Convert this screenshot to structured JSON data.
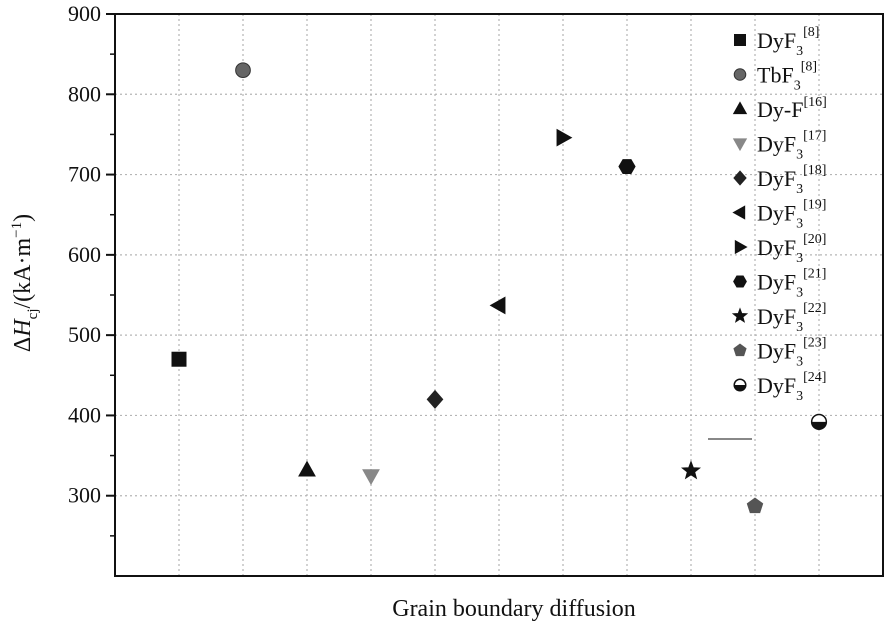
{
  "chart_data": {
    "type": "scatter",
    "xlabel": "Grain boundary diffusion",
    "ylabel": {
      "prefix": "ΔH",
      "subscript": "cj",
      "suffix": "/(kA·m",
      "superscript": "−1",
      "close": ")"
    },
    "ylim": [
      200,
      900
    ],
    "yticks": [
      300,
      400,
      500,
      600,
      700,
      800,
      900
    ],
    "grid": true,
    "legend_position": "top-right",
    "series": [
      {
        "name": "DyF",
        "sub": "3",
        "ref": "[8]",
        "marker": "square",
        "color": "#111111",
        "x": 1,
        "y": 470
      },
      {
        "name": "TbF",
        "sub": "3",
        "ref": "[8]",
        "marker": "circle",
        "color": "#666666",
        "x": 2,
        "y": 830
      },
      {
        "name": "Dy-F",
        "sub": "",
        "ref": "[16]",
        "marker": "triangle-up",
        "color": "#111111",
        "x": 3,
        "y": 332
      },
      {
        "name": "DyF",
        "sub": "3",
        "ref": "[17]",
        "marker": "triangle-down",
        "color": "#888888",
        "x": 4,
        "y": 325
      },
      {
        "name": "DyF",
        "sub": "3",
        "ref": "[18]",
        "marker": "diamond",
        "color": "#222222",
        "x": 5,
        "y": 420
      },
      {
        "name": "DyF",
        "sub": "3",
        "ref": "[19]",
        "marker": "triangle-left",
        "color": "#111111",
        "x": 6,
        "y": 537
      },
      {
        "name": "DyF",
        "sub": "3",
        "ref": "[20]",
        "marker": "triangle-right",
        "color": "#111111",
        "x": 7,
        "y": 746
      },
      {
        "name": "DyF",
        "sub": "3",
        "ref": "[21]",
        "marker": "hexagon",
        "color": "#111111",
        "x": 8,
        "y": 710
      },
      {
        "name": "DyF",
        "sub": "3",
        "ref": "[22]",
        "marker": "star",
        "color": "#111111",
        "x": 9,
        "y": 331
      },
      {
        "name": "DyF",
        "sub": "3",
        "ref": "[23]",
        "marker": "pentagon",
        "color": "#555555",
        "x": 10,
        "y": 287
      },
      {
        "name": "DyF",
        "sub": "3",
        "ref": "[24]",
        "marker": "half-circle",
        "color": "#111111",
        "x": 11,
        "y": 392
      }
    ]
  }
}
